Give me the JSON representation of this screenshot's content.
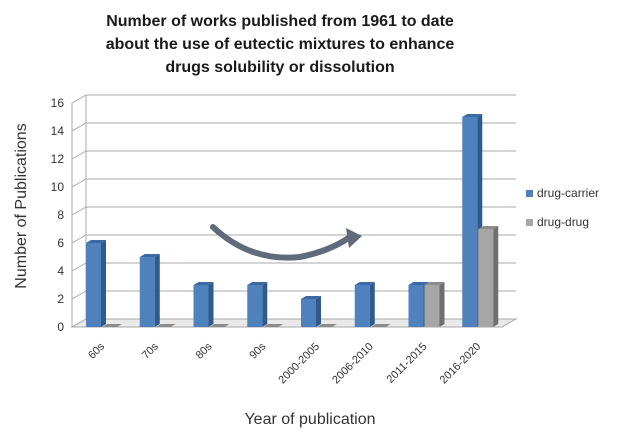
{
  "chart_data": {
    "type": "bar",
    "title_lines": [
      "Number of works published from 1961 to date",
      "about the use of eutectic mixtures to enhance",
      "drugs solubility or dissolution"
    ],
    "categories": [
      "60s",
      "70s",
      "80s",
      "90s",
      "2000-2005",
      "2006-2010",
      "2011-2015",
      "2016-2020"
    ],
    "series": [
      {
        "name": "drug-carrier",
        "values": [
          6,
          5,
          3,
          3,
          2,
          3,
          3,
          15
        ],
        "color": "#4f81bd",
        "side_color": "#2f5a8c",
        "top_color": "#3a6aa3"
      },
      {
        "name": "drug-drug",
        "values": [
          0,
          0,
          0,
          0,
          0,
          0,
          3,
          7
        ],
        "color": "#a6a6a6",
        "side_color": "#6f6f6f",
        "top_color": "#8c8c8c"
      }
    ],
    "xlabel": "Year of publication",
    "ylabel": "Number of Publications",
    "ylim": [
      0,
      16
    ],
    "yticks": [
      "0",
      "2",
      "4",
      "6",
      "8",
      "10",
      "12",
      "14",
      "16"
    ],
    "grid": true,
    "legend_position": "right",
    "annotation": "curved arrow indicating increasing trend"
  }
}
